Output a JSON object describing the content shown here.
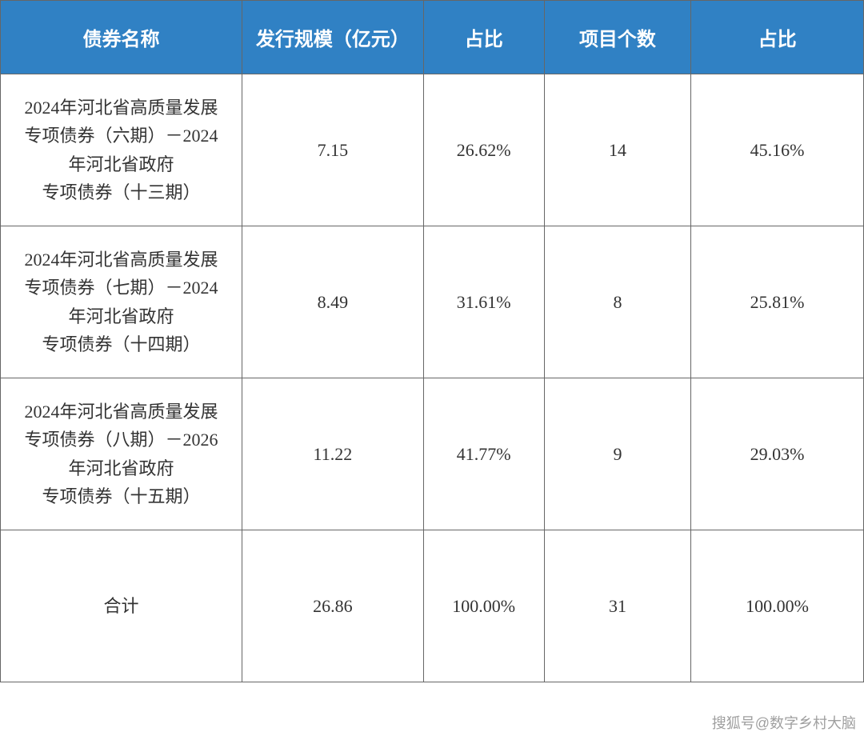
{
  "table": {
    "type": "table",
    "header_background": "#3081c4",
    "header_text_color": "#ffffff",
    "border_color": "#666666",
    "cell_text_color": "#333333",
    "font_family": "SimSun",
    "header_fontsize": 24,
    "cell_fontsize": 22,
    "columns": [
      {
        "label": "债券名称",
        "width_pct": 28,
        "align": "center"
      },
      {
        "label": "发行规模（亿元）",
        "width_pct": 21,
        "align": "center"
      },
      {
        "label": "占比",
        "width_pct": 14,
        "align": "center"
      },
      {
        "label": "项目个数",
        "width_pct": 17,
        "align": "center"
      },
      {
        "label": "占比",
        "width_pct": 20,
        "align": "center"
      }
    ],
    "rows": [
      {
        "name_line1": "2024年河北省高质量发展",
        "name_line2": "专项债券（六期）－2024",
        "name_line3": "年河北省政府",
        "name_line4": "专项债券（十三期）",
        "scale": "7.15",
        "ratio1": "26.62%",
        "count": "14",
        "ratio2": "45.16%"
      },
      {
        "name_line1": "2024年河北省高质量发展",
        "name_line2": "专项债券（七期）－2024",
        "name_line3": "年河北省政府",
        "name_line4": "专项债券（十四期）",
        "scale": "8.49",
        "ratio1": "31.61%",
        "count": "8",
        "ratio2": "25.81%"
      },
      {
        "name_line1": "2024年河北省高质量发展",
        "name_line2": "专项债券（八期）－2026",
        "name_line3": "年河北省政府",
        "name_line4": "专项债券（十五期）",
        "scale": "11.22",
        "ratio1": "41.77%",
        "count": "9",
        "ratio2": "29.03%"
      }
    ],
    "total": {
      "label": "合计",
      "scale": "26.86",
      "ratio1": "100.00%",
      "count": "31",
      "ratio2": "100.00%"
    }
  },
  "watermark": "搜狐号@数字乡村大脑"
}
